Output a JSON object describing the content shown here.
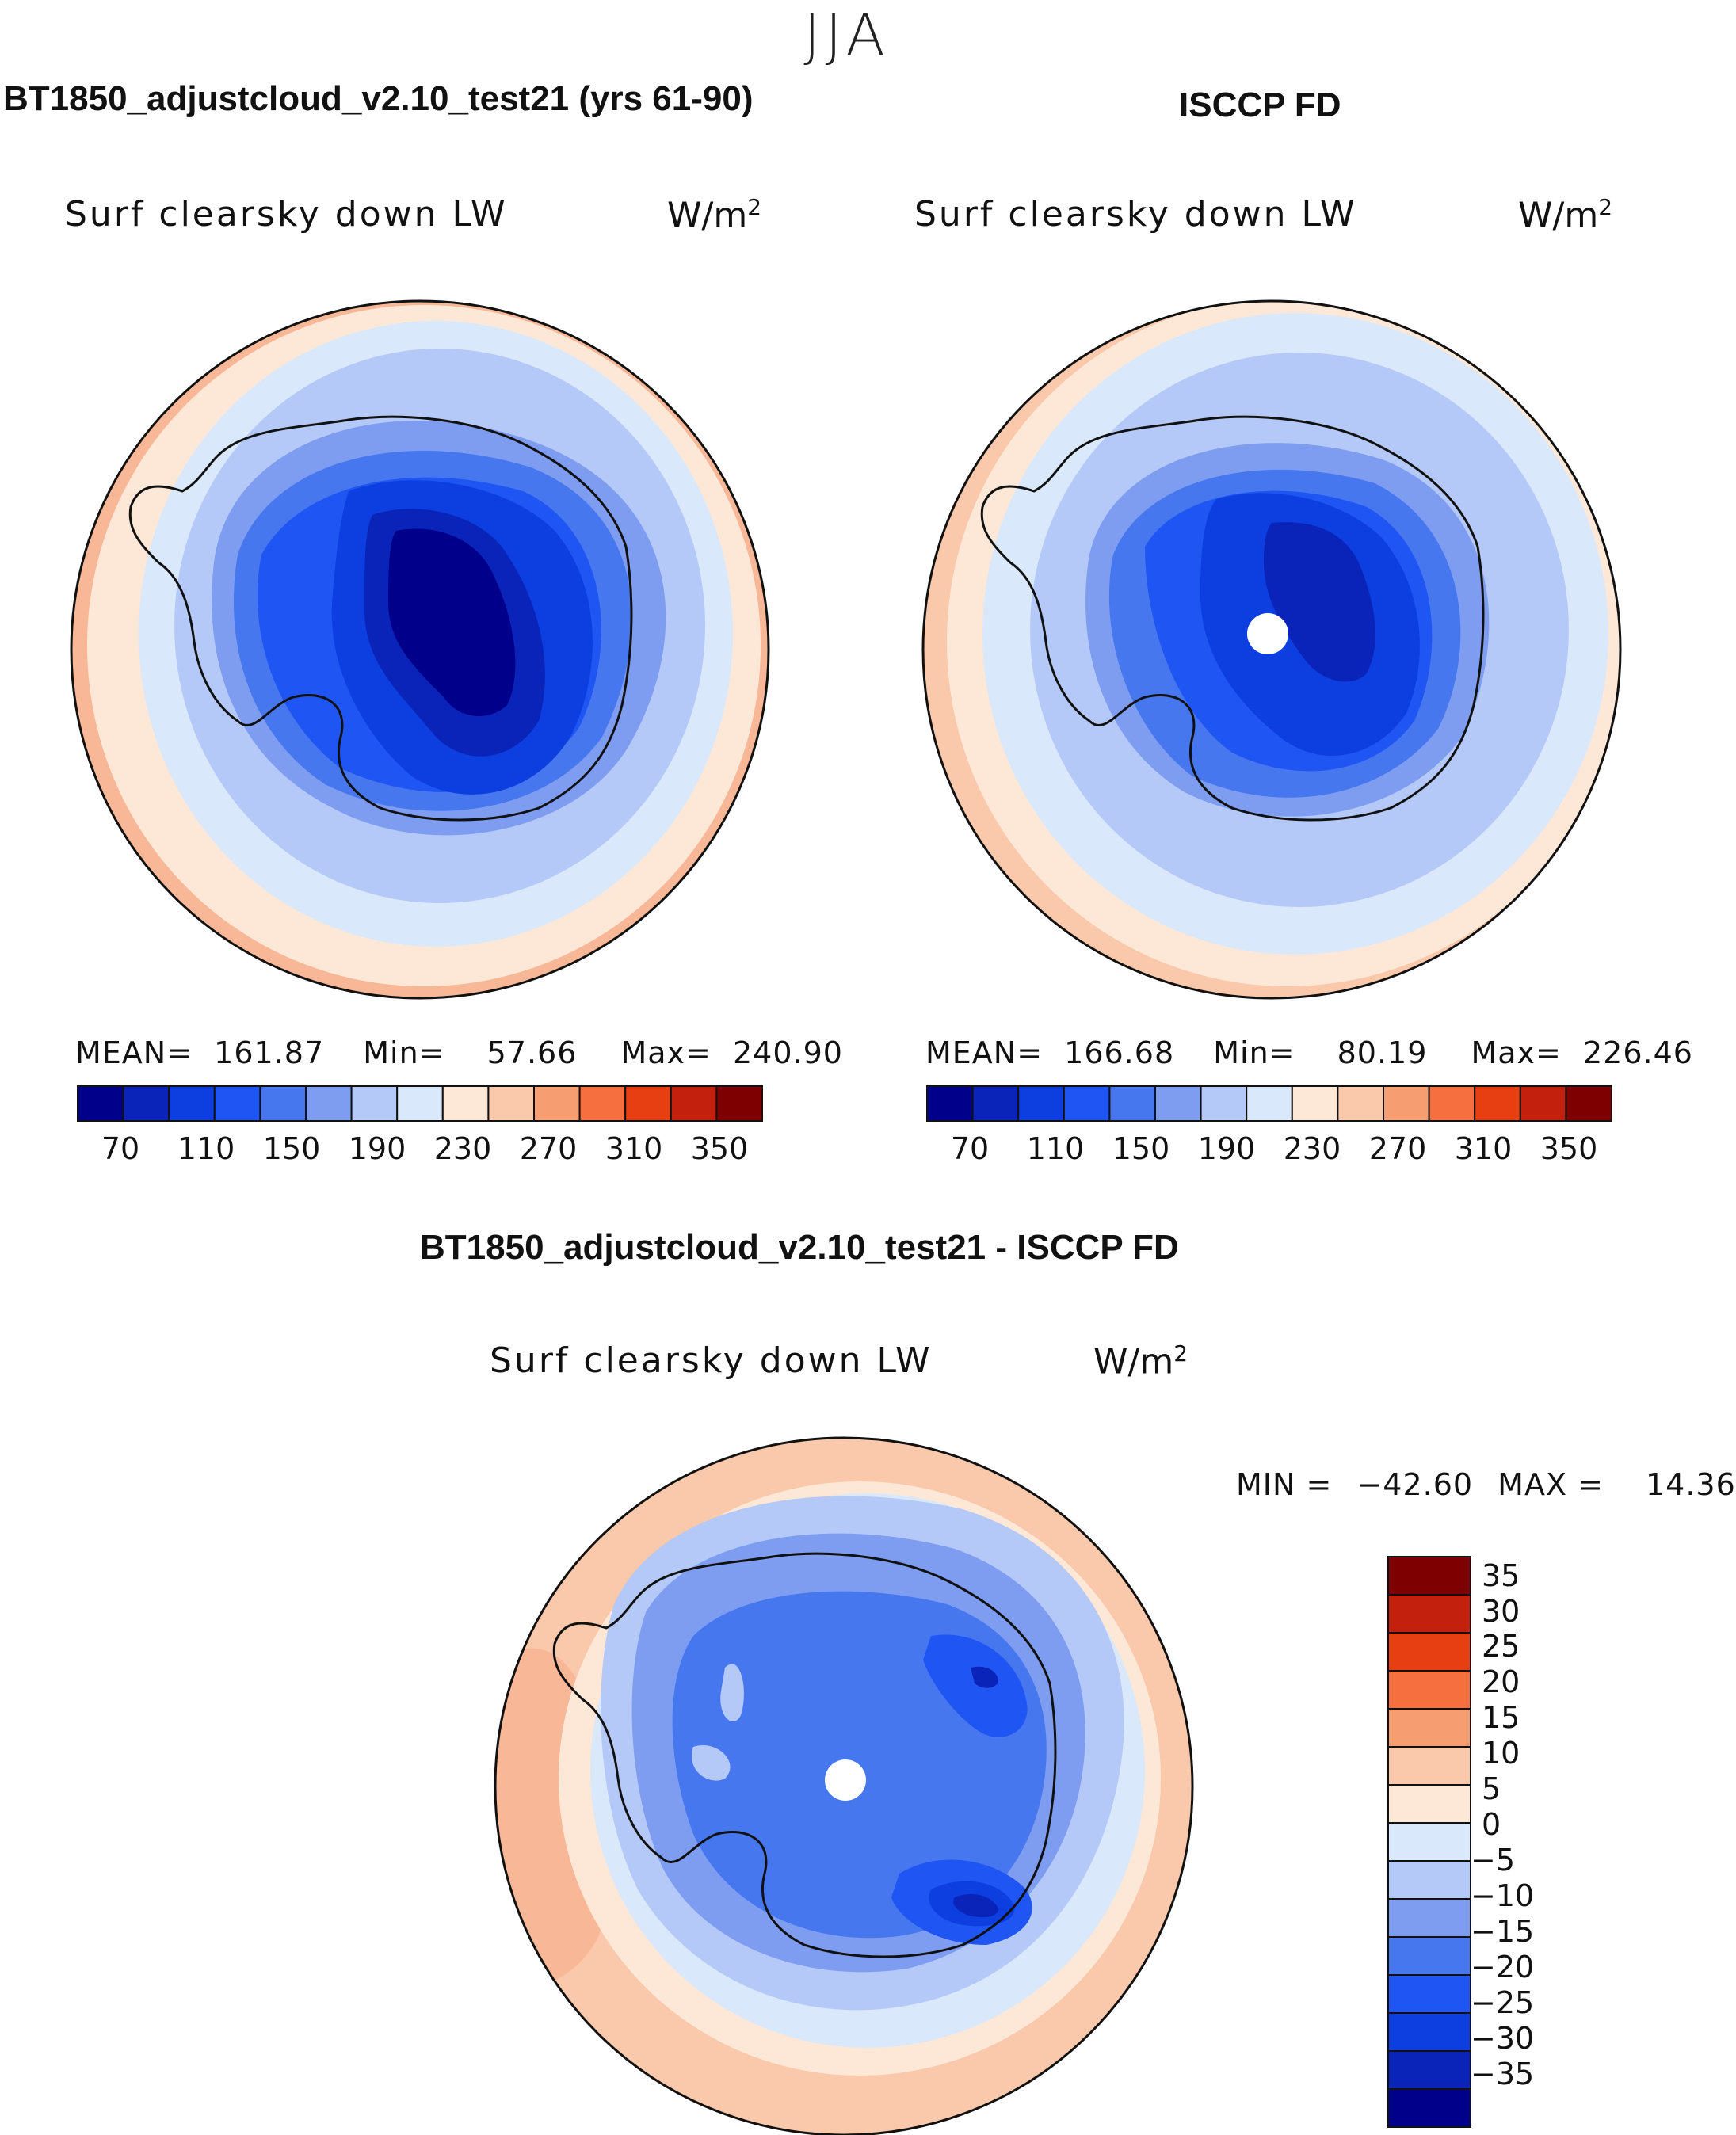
{
  "season": "JJA",
  "panels": [
    {
      "title": "BT1850_adjustcloud_v2.10_test21 (yrs 61-90)",
      "variable": "Surf clearsky down LW",
      "units_base": "W/m",
      "units_exp": "2",
      "stats": {
        "mean_label": "MEAN=",
        "mean": "161.87",
        "min_label": "Min=",
        "min": "57.66",
        "max_label": "Max=",
        "max": "240.90"
      }
    },
    {
      "title": "ISCCP FD",
      "variable": "Surf clearsky down LW",
      "units_base": "W/m",
      "units_exp": "2",
      "stats": {
        "mean_label": "MEAN=",
        "mean": "166.68",
        "min_label": "Min=",
        "min": "80.19",
        "max_label": "Max=",
        "max": "226.46"
      }
    },
    {
      "title": "BT1850_adjustcloud_v2.10_test21 - ISCCP FD",
      "variable": "Surf clearsky down LW",
      "units_base": "W/m",
      "units_exp": "2",
      "stats": {
        "min_label": "MIN =",
        "min": "−42.60",
        "max_label": "MAX =",
        "max": "14.36"
      }
    }
  ],
  "colorbar_abs": {
    "colors": [
      "#00008b",
      "#0a23b8",
      "#0c3ee0",
      "#1f55f2",
      "#4677ef",
      "#7e9df0",
      "#b4c9f7",
      "#dae8fb",
      "#fde8d8",
      "#fac8aa",
      "#f79d72",
      "#f66f3f",
      "#e83f12",
      "#c3200d",
      "#7f0000"
    ],
    "tick_labels": [
      "70",
      "110",
      "150",
      "190",
      "230",
      "270",
      "310",
      "350"
    ]
  },
  "colorbar_diff": {
    "colors": [
      "#7f0000",
      "#c3200d",
      "#e83f12",
      "#f66f3f",
      "#f79d72",
      "#fac8aa",
      "#fde8d8",
      "#dae8fb",
      "#b4c9f7",
      "#7e9df0",
      "#4677ef",
      "#1f55f2",
      "#0c3ee0",
      "#0a23b8",
      "#00008b"
    ],
    "tick_labels": [
      "35",
      "30",
      "25",
      "20",
      "15",
      "10",
      "5",
      "0",
      "−5",
      "−10",
      "−15",
      "−20",
      "−25",
      "−30",
      "−35"
    ]
  }
}
